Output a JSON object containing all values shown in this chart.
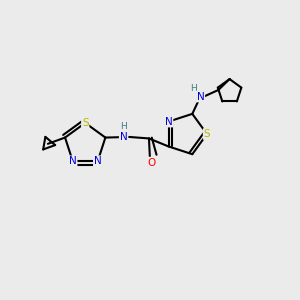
{
  "background_color": "#ebebeb",
  "atom_colors": {
    "S": "#b8b800",
    "N": "#0000dd",
    "O": "#ff0000",
    "C": "#000000",
    "H": "#3a8080"
  },
  "bond_color": "#000000",
  "font_size": 7.5,
  "line_width": 1.5,
  "xlim": [
    0,
    10
  ],
  "ylim": [
    0,
    10
  ]
}
